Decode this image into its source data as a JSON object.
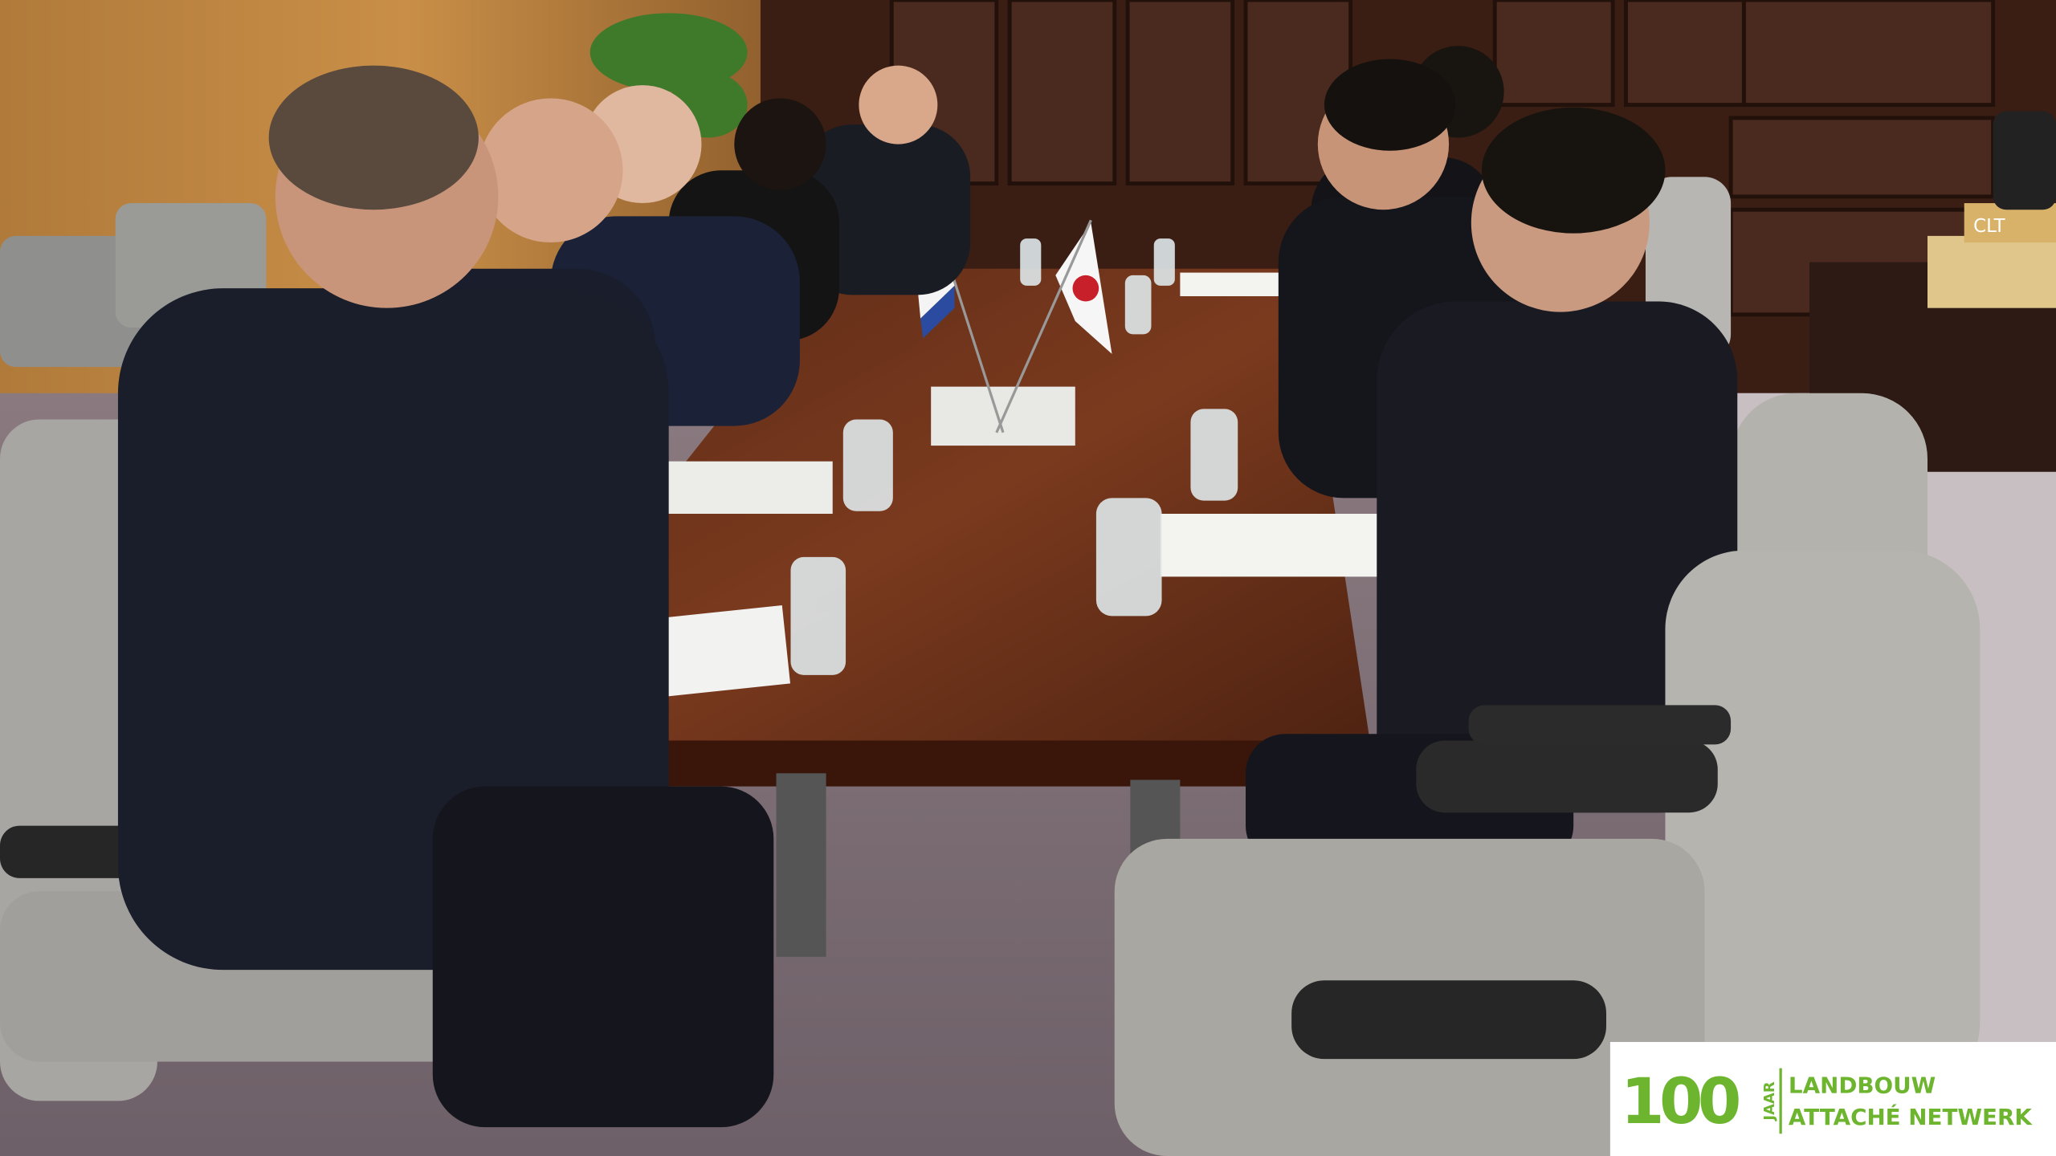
{
  "sign": "CLT",
  "logo": {
    "number": "100",
    "jaar": "JAAR",
    "line1": "LANDBOUW",
    "line2": "ATTACHÉ NETWERK"
  }
}
